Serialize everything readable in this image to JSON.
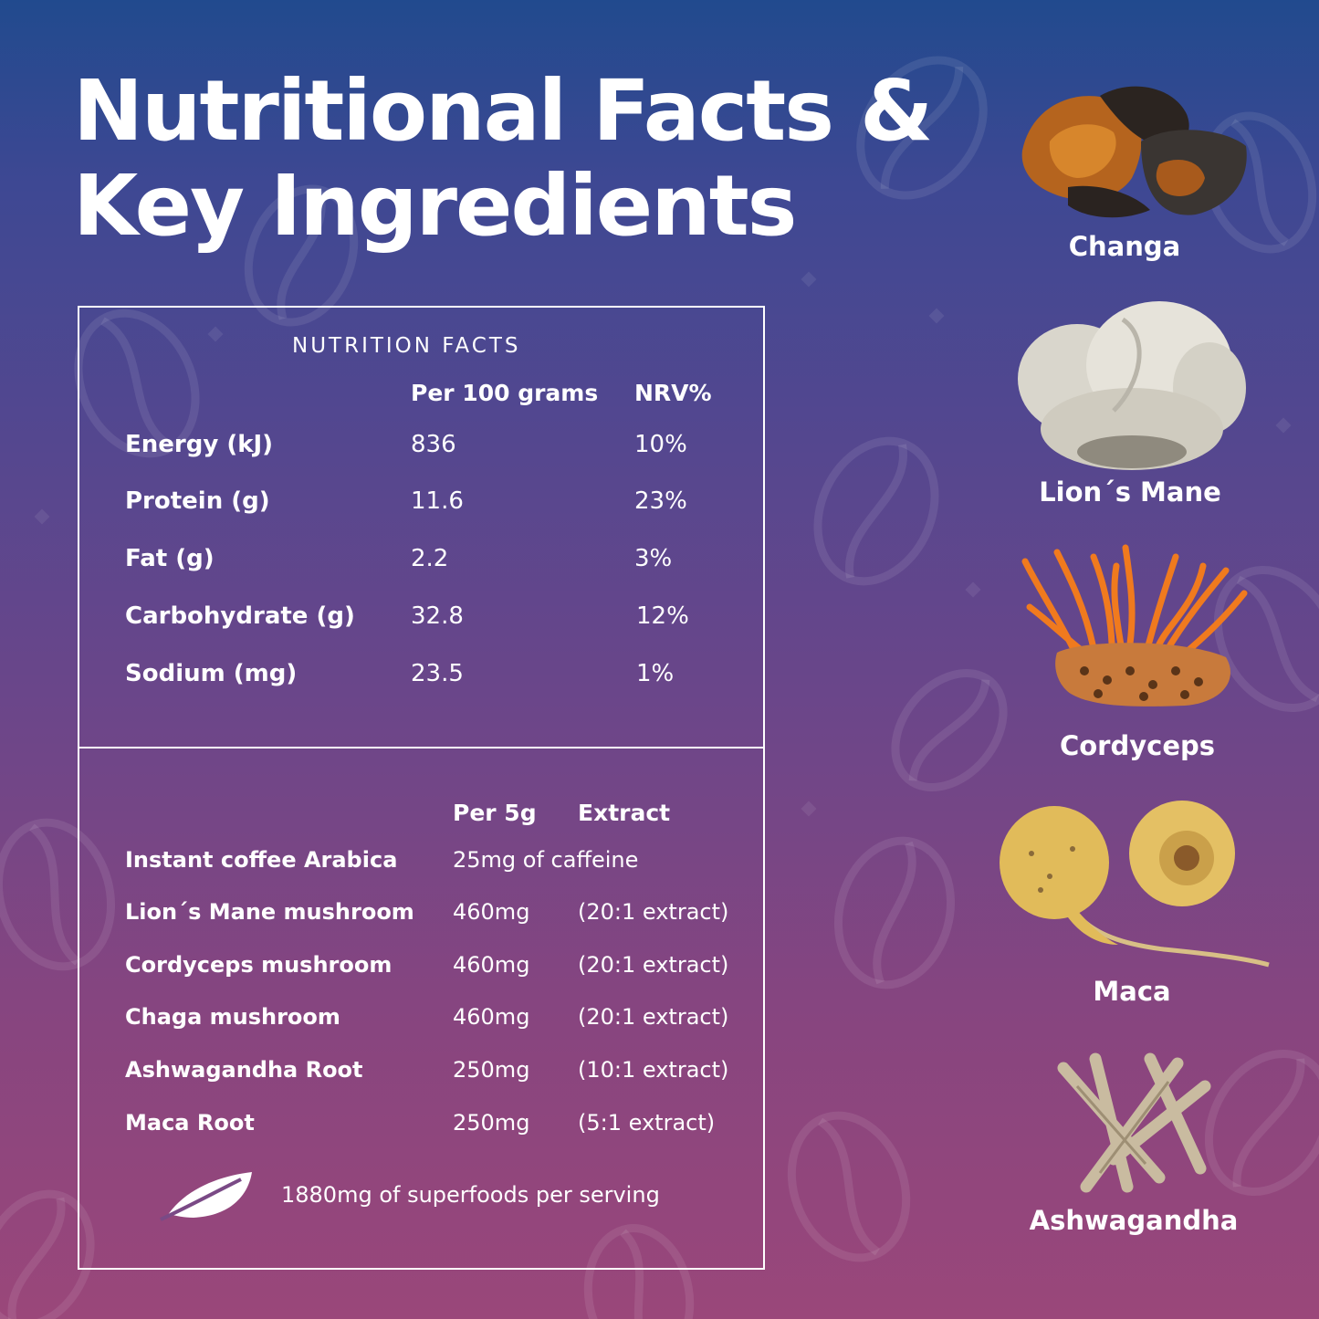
{
  "title": {
    "line1": "Nutritional Facts &",
    "line2": "Key Ingredients"
  },
  "nutrition": {
    "heading": "NUTRITION FACTS",
    "col_per": "Per 100 grams",
    "col_nrv": "NRV%",
    "rows": [
      {
        "label": "Energy (kJ)",
        "value": "836",
        "nrv": "10%"
      },
      {
        "label": "Protein (g)",
        "value": "11.6",
        "nrv": "23%"
      },
      {
        "label": "Fat (g)",
        "value": "2.2",
        "nrv": "3%"
      },
      {
        "label": "Carbohydrate (g)",
        "value": "32.8",
        "nrv": "12%"
      },
      {
        "label": "Sodium (mg)",
        "value": "23.5",
        "nrv": "1%"
      }
    ]
  },
  "ingredients_table": {
    "col_per": "Per 5g",
    "col_extract": "Extract",
    "rows": [
      {
        "label": "Instant coffee Arabica",
        "amount": "25mg of caffeine",
        "extract": ""
      },
      {
        "label": "Lion´s Mane mushroom",
        "amount": "460mg",
        "extract": "(20:1 extract)"
      },
      {
        "label": "Cordyceps mushroom",
        "amount": "460mg",
        "extract": "(20:1 extract)"
      },
      {
        "label": "Chaga  mushroom",
        "amount": "460mg",
        "extract": "(20:1 extract)"
      },
      {
        "label": "Ashwagandha Root",
        "amount": "250mg",
        "extract": "(10:1 extract)"
      },
      {
        "label": "Maca Root",
        "amount": "250mg",
        "extract": "(5:1 extract)"
      }
    ],
    "footer": "1880mg of superfoods per serving",
    "footer_icon": "leaf-icon"
  },
  "key_ingredients": [
    {
      "name": "Changa",
      "image": "chaga-chunks-image"
    },
    {
      "name": "Lion´s Mane",
      "image": "lions-mane-mushroom-image"
    },
    {
      "name": "Cordyceps",
      "image": "cordyceps-image"
    },
    {
      "name": "Maca",
      "image": "maca-root-image"
    },
    {
      "name": "Ashwagandha",
      "image": "ashwagandha-roots-image"
    }
  ],
  "colors": {
    "gradient_top": "#214a8e",
    "gradient_bottom": "#9a477a",
    "text": "#ffffff"
  }
}
